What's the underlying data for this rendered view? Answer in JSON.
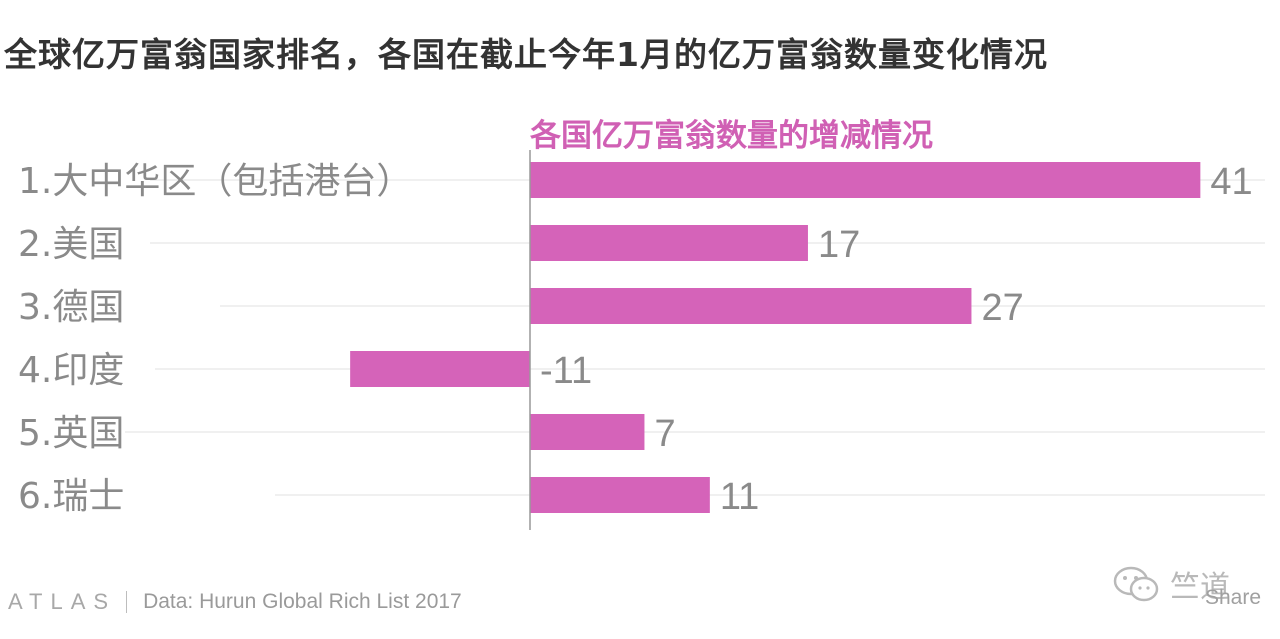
{
  "headline": "全球亿万富翁国家排名，各国在截止今年1月的亿万富翁数量变化情况",
  "chart_data": {
    "type": "bar",
    "orientation": "horizontal",
    "title": "各国亿万富翁数量的增减情况",
    "categories": [
      "1.大中华区（包括港台）",
      "2.美国",
      "3.德国",
      "4.印度",
      "5.英国",
      "6.瑞士"
    ],
    "values": [
      41,
      17,
      27,
      -11,
      7,
      11
    ],
    "value_labels": [
      "41",
      "17",
      "27",
      "-11",
      "7",
      "11"
    ],
    "xlim": [
      -11,
      41
    ],
    "grid": true,
    "colors": {
      "bar": "#d563b9",
      "title": "#d060b4",
      "label": "#8a8a8a",
      "grid": "#ececec",
      "axis": "#999999"
    }
  },
  "footer": {
    "logo": "ATLAS",
    "source": "Data:  Hurun Global Rich List 2017"
  },
  "watermark": {
    "icon": "wechat-icon",
    "text": "竺道"
  },
  "share_label": "Share"
}
